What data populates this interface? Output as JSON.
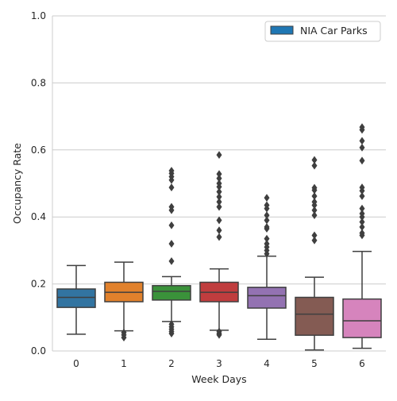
{
  "chart_data": {
    "type": "box",
    "title": "",
    "xlabel": "Week Days",
    "ylabel": "Occupancy Rate",
    "ylim": [
      0.0,
      1.0
    ],
    "yticks": [
      "0.0",
      "0.2",
      "0.4",
      "0.6",
      "0.8",
      "1.0"
    ],
    "categories": [
      "0",
      "1",
      "2",
      "3",
      "4",
      "5",
      "6"
    ],
    "grid": "horizontal",
    "legend": {
      "position": "top-right",
      "entries": [
        {
          "label": "NIA Car Parks",
          "color": "#1f77b4"
        }
      ]
    },
    "boxes": [
      {
        "category": "0",
        "color": "#3274a1",
        "whisker_low": 0.05,
        "q1": 0.13,
        "median": 0.16,
        "q3": 0.185,
        "whisker_high": 0.255,
        "outliers": []
      },
      {
        "category": "1",
        "color": "#e1812c",
        "whisker_low": 0.06,
        "q1": 0.147,
        "median": 0.175,
        "q3": 0.205,
        "whisker_high": 0.265,
        "outliers": [
          0.055,
          0.048,
          0.04
        ]
      },
      {
        "category": "2",
        "color": "#3a923a",
        "whisker_low": 0.088,
        "q1": 0.152,
        "median": 0.178,
        "q3": 0.195,
        "whisker_high": 0.222,
        "outliers": [
          0.08,
          0.072,
          0.065,
          0.058,
          0.052,
          0.268,
          0.32,
          0.375,
          0.42,
          0.43,
          0.488,
          0.51,
          0.52,
          0.53,
          0.538
        ]
      },
      {
        "category": "3",
        "color": "#c03d3e",
        "whisker_low": 0.062,
        "q1": 0.147,
        "median": 0.175,
        "q3": 0.205,
        "whisker_high": 0.245,
        "outliers": [
          0.058,
          0.052,
          0.048,
          0.34,
          0.36,
          0.39,
          0.43,
          0.445,
          0.46,
          0.475,
          0.49,
          0.5,
          0.515,
          0.528,
          0.585
        ]
      },
      {
        "category": "4",
        "color": "#9372b2",
        "whisker_low": 0.035,
        "q1": 0.128,
        "median": 0.165,
        "q3": 0.19,
        "whisker_high": 0.283,
        "outliers": [
          0.29,
          0.3,
          0.31,
          0.32,
          0.335,
          0.365,
          0.37,
          0.39,
          0.405,
          0.425,
          0.435,
          0.457
        ]
      },
      {
        "category": "5",
        "color": "#845b53",
        "whisker_low": 0.003,
        "q1": 0.047,
        "median": 0.11,
        "q3": 0.16,
        "whisker_high": 0.22,
        "outliers": [
          0.33,
          0.345,
          0.405,
          0.42,
          0.435,
          0.445,
          0.462,
          0.48,
          0.487,
          0.553,
          0.57
        ]
      },
      {
        "category": "6",
        "color": "#d684bd",
        "whisker_low": 0.008,
        "q1": 0.04,
        "median": 0.09,
        "q3": 0.155,
        "whisker_high": 0.297,
        "outliers": [
          0.345,
          0.352,
          0.37,
          0.385,
          0.4,
          0.41,
          0.425,
          0.462,
          0.478,
          0.488,
          0.568,
          0.607,
          0.627,
          0.66,
          0.668
        ]
      }
    ]
  }
}
